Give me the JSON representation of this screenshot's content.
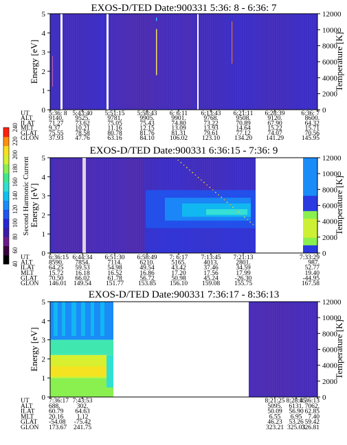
{
  "figure": {
    "y_left_label": "Energy [eV]",
    "y_right_label": "Temperature [K]",
    "colorbar_label": "Second Harmonic Current",
    "colorbar_ticks": [
      "40",
      "60",
      "80",
      "100",
      "120",
      "140",
      "160",
      "180",
      "200",
      "220",
      "240"
    ],
    "colorbar_colors": [
      "#000000",
      "#3a0040",
      "#6a1a8a",
      "#3a1aaa",
      "#2626d8",
      "#1f55f0",
      "#1a8cf8",
      "#10c0f0",
      "#30e0d0",
      "#40e890",
      "#8af050",
      "#d8f030",
      "#f8e020",
      "#ff9010",
      "#ff2010"
    ],
    "ephem_row_labels": [
      "UT",
      "ALT",
      "ILAT",
      "MLT",
      "GLAT",
      "GLON"
    ]
  },
  "chart_data": [
    {
      "type": "heatmap",
      "title": "EXOS-D/TED   Date:900331  5:36: 8 - 6:36: 7",
      "ylabel": "Energy [eV]",
      "ylim": [
        0,
        5
      ],
      "y_ticks": [
        "0",
        "1",
        "2",
        "3",
        "4",
        "5"
      ],
      "y2label": "Temperature [K]",
      "y2lim": [
        0,
        12000
      ],
      "y2_ticks": [
        "0",
        "2000",
        "4000",
        "6000",
        "8000",
        "10000",
        "12000"
      ],
      "x_ticks": [
        "5:36: 8",
        "5:43:40",
        "5:51:15",
        "5:58:43",
        "6: 6:11",
        "6:13:43",
        "6:21:11",
        "6:28:39",
        "6:36: 7"
      ],
      "ephemeris": {
        "UT": [
          "5:36: 8",
          "5:43:40",
          "5:51:15",
          "5:58:43",
          "6: 6:11",
          "6:13:43",
          "6:21:11",
          "6:28:39",
          "6:36: 7"
        ],
        "ALT": [
          "9140.",
          "9525.",
          "9781.",
          "9905.",
          "9901.",
          "9768.",
          "9508.",
          "9120.",
          "8600."
        ],
        "ILAT": [
          "71.27",
          "73.62",
          "75.05",
          "75.43",
          "74.80",
          "73.22",
          "70.89",
          "67.90",
          "64.32"
        ],
        "MLT": [
          "9.37",
          "10.21",
          "11.16",
          "12.15",
          "13.09",
          "13.93",
          "14.64",
          "15.22",
          "15.71"
        ],
        "GLAT": [
          "75.55",
          "78.58",
          "80.78",
          "81.76",
          "81.31",
          "79.61",
          "77.12",
          "74.07",
          "70.56"
        ],
        "GLON": [
          "37.93",
          "47.76",
          "63.16",
          "84.10",
          "106.02",
          "123.10",
          "134.20",
          "141.29",
          "145.95"
        ]
      }
    },
    {
      "type": "heatmap",
      "title": "EXOS-D/TED   Date:900331  6:36:15 - 7:36: 9",
      "ylabel": "Energy [eV]",
      "ylim": [
        0,
        5
      ],
      "y_ticks": [
        "0",
        "1",
        "2",
        "3",
        "4",
        "5"
      ],
      "y2label": "Temperature [K]",
      "y2lim": [
        0,
        12000
      ],
      "y2_ticks": [
        "0",
        "2000",
        "4000",
        "6000",
        "8000",
        "10000",
        "12000"
      ],
      "x_ticks": [
        "6:36:15",
        "6:44:34",
        "6:51:30",
        "6:58:49",
        "7: 6:17",
        "7:13:45",
        "7:21:13",
        "7:33:29"
      ],
      "ephemeris": {
        "UT": [
          "6:36:15",
          "6:44:34",
          "6:51:30",
          "6:58:49",
          "7: 6:17",
          "7:13:45",
          "7:21:13",
          "7:33:29"
        ],
        "ALT": [
          "8590.",
          "7854.",
          "7114.",
          "6210.",
          "5165.",
          "4013.",
          "2801.",
          "987."
        ],
        "ILAT": [
          "64.25",
          "59.53",
          "54.98",
          "49.54",
          "43.42",
          "37.46",
          "34.59",
          "52.77"
        ],
        "MLT": [
          "15.72",
          "16.18",
          "16.52",
          "16.86",
          "17.20",
          "17.56",
          "17.99",
          "19.40"
        ],
        "GLAT": [
          "70.50",
          "66.02",
          "61.78",
          "56.72",
          "50.98",
          "45.24",
          "-26.30",
          "-44.95"
        ],
        "GLON": [
          "146.01",
          "149.54",
          "151.77",
          "153.85",
          "156.10",
          "159.08",
          "155.75",
          "167.58"
        ]
      }
    },
    {
      "type": "heatmap",
      "title": "EXOS-D/TED   Date:900331  7:36:17 - 8:36:13",
      "ylabel": "Energy [eV]",
      "ylim": [
        0,
        5
      ],
      "y_ticks": [
        "0",
        "1",
        "2",
        "3",
        "4",
        "5"
      ],
      "y2label": "Temperature [K]",
      "y2lim": [
        0,
        12000
      ],
      "y2_ticks": [
        "0",
        "2000",
        "4000",
        "6000",
        "8000",
        "10000",
        "12000"
      ],
      "x_ticks": [
        "7:36:17",
        "7:43:53",
        "8:21:25",
        "8:28:45",
        "8:36:13"
      ],
      "ephemeris": {
        "UT": [
          "7:36:17",
          "7:43:53",
          "8:21:25",
          "8:28:45",
          "8:36:13"
        ],
        "ALT": [
          "688.",
          "302.",
          "5095.",
          "6131.",
          "7062."
        ],
        "ILAT": [
          "60.79",
          "64.63",
          "50.09",
          "56.90",
          "62.85"
        ],
        "MLT": [
          "20.16",
          "1.12",
          "6.55",
          "6.95",
          "7.40"
        ],
        "GLAT": [
          "-54.08",
          "-75.42",
          "46.23",
          "53.26",
          "59.42"
        ],
        "GLON": [
          "173.67",
          "241.75",
          "323.21",
          "325.03",
          "326.81"
        ]
      }
    }
  ]
}
